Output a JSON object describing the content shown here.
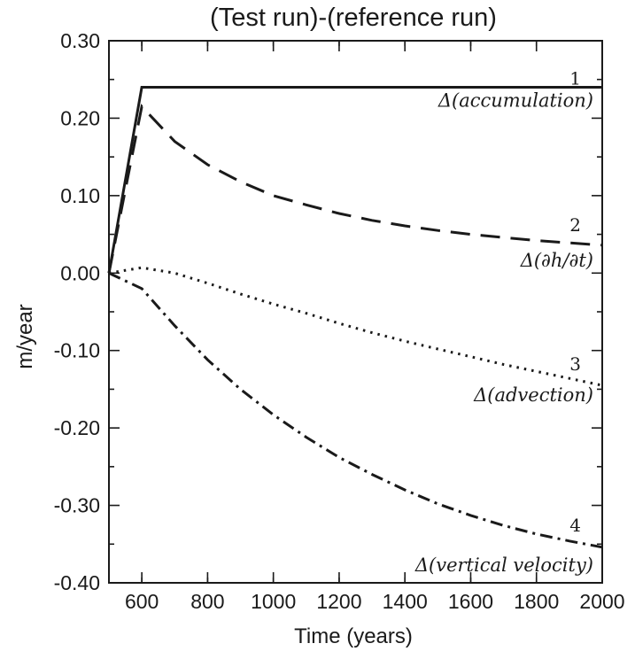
{
  "chart_data": {
    "type": "line",
    "title": "(Test run)-(reference run)",
    "xlabel": "Time (years)",
    "ylabel": "m/year",
    "xlim": [
      500,
      2000
    ],
    "ylim": [
      -0.4,
      0.3
    ],
    "x_ticks": [
      600,
      800,
      1000,
      1200,
      1400,
      1600,
      1800,
      2000
    ],
    "x_tick_labels": [
      "600",
      "800",
      "1000",
      "1200",
      "1400",
      "1600",
      "1800",
      "2000"
    ],
    "y_ticks": [
      0.3,
      0.2,
      0.1,
      0.0,
      -0.1,
      -0.2,
      -0.3,
      -0.4
    ],
    "y_tick_labels": [
      "0.30",
      "0.20",
      "0.10",
      "0.00",
      "-0.10",
      "-0.20",
      "-0.30",
      "-0.40"
    ],
    "grid": false,
    "legend": "none",
    "series": [
      {
        "number": "1",
        "label": "Δ(accumulation)",
        "style": "solid",
        "x": [
          500,
          600,
          2000
        ],
        "y": [
          0.0,
          0.24,
          0.24
        ]
      },
      {
        "number": "2",
        "label": "Δ(∂h/∂t)",
        "style": "dashed",
        "x": [
          500,
          600,
          700,
          800,
          900,
          1000,
          1100,
          1200,
          1300,
          1400,
          1500,
          1600,
          1700,
          1800,
          1900,
          2000
        ],
        "y": [
          0.0,
          0.215,
          0.17,
          0.14,
          0.118,
          0.1,
          0.088,
          0.077,
          0.068,
          0.061,
          0.055,
          0.05,
          0.046,
          0.042,
          0.039,
          0.036
        ]
      },
      {
        "number": "3",
        "label": "Δ(advection)",
        "style": "dotted",
        "x": [
          500,
          600,
          700,
          800,
          900,
          1000,
          1100,
          1200,
          1300,
          1400,
          1500,
          1600,
          1700,
          1800,
          1900,
          2000
        ],
        "y": [
          0.0,
          0.007,
          0.0,
          -0.013,
          -0.027,
          -0.04,
          -0.052,
          -0.065,
          -0.077,
          -0.088,
          -0.098,
          -0.108,
          -0.118,
          -0.127,
          -0.136,
          -0.145
        ]
      },
      {
        "number": "4",
        "label": "Δ(vertical velocity)",
        "style": "dashdot",
        "x": [
          500,
          600,
          700,
          800,
          900,
          1000,
          1100,
          1200,
          1300,
          1400,
          1500,
          1600,
          1700,
          1800,
          1900,
          2000
        ],
        "y": [
          0.0,
          -0.02,
          -0.068,
          -0.112,
          -0.15,
          -0.183,
          -0.212,
          -0.238,
          -0.26,
          -0.28,
          -0.298,
          -0.313,
          -0.326,
          -0.337,
          -0.346,
          -0.354
        ]
      }
    ]
  }
}
